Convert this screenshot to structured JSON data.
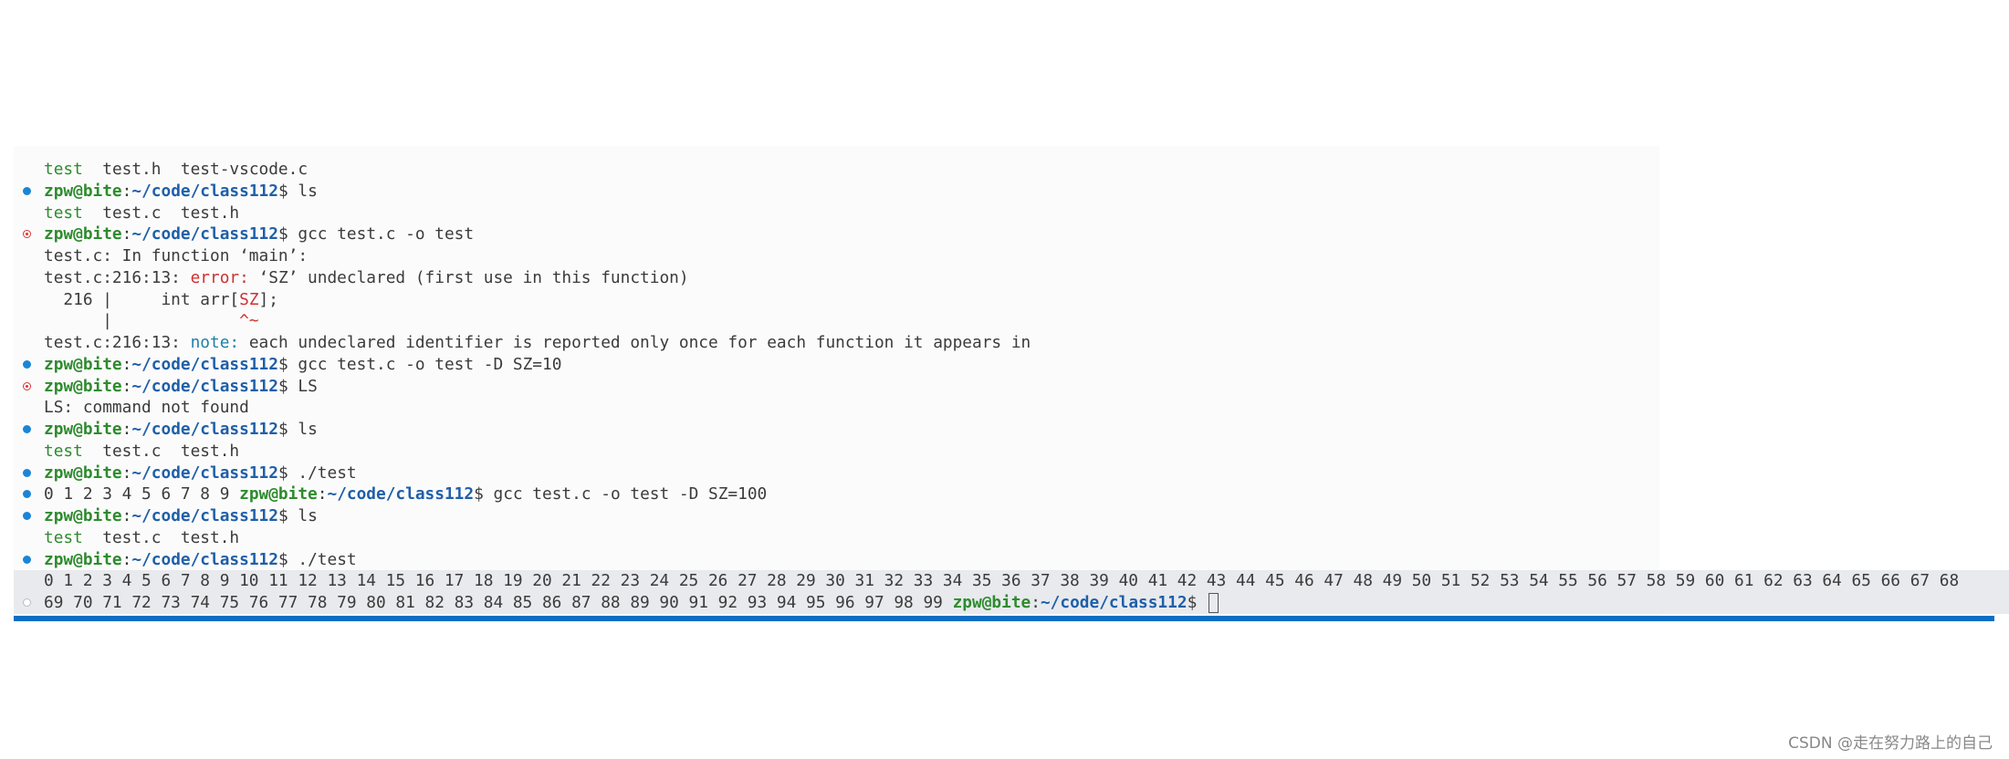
{
  "colors": {
    "prompt_user": "#2e8b2e",
    "prompt_path": "#1f5fa8",
    "error": "#cd3131",
    "note": "#1f7fa8",
    "status_bar": "#0a6fc2"
  },
  "terminal": {
    "lines": [
      {
        "marker": "",
        "segments": [
          {
            "t": "test",
            "c": "file"
          },
          {
            "t": "  test.h  test-vscode.c",
            "c": "text"
          }
        ]
      },
      {
        "marker": "ok",
        "segments": [
          {
            "t": "zpw@bite",
            "c": "user"
          },
          {
            "t": ":",
            "c": "sep"
          },
          {
            "t": "~/code/class112",
            "c": "path"
          },
          {
            "t": "$ ls",
            "c": "text"
          }
        ]
      },
      {
        "marker": "",
        "segments": [
          {
            "t": "test",
            "c": "file"
          },
          {
            "t": "  test.c  test.h",
            "c": "text"
          }
        ]
      },
      {
        "marker": "err",
        "segments": [
          {
            "t": "zpw@bite",
            "c": "user"
          },
          {
            "t": ":",
            "c": "sep"
          },
          {
            "t": "~/code/class112",
            "c": "path"
          },
          {
            "t": "$ gcc test.c -o test",
            "c": "text"
          }
        ]
      },
      {
        "marker": "",
        "segments": [
          {
            "t": "test.c: In function ‘main’:",
            "c": "text"
          }
        ]
      },
      {
        "marker": "",
        "segments": [
          {
            "t": "test.c:216:13: ",
            "c": "text"
          },
          {
            "t": "error:",
            "c": "err"
          },
          {
            "t": " ‘SZ’ undeclared (first use in this function)",
            "c": "text"
          }
        ]
      },
      {
        "marker": "",
        "segments": [
          {
            "t": "  216 |     int arr[",
            "c": "text"
          },
          {
            "t": "SZ",
            "c": "err"
          },
          {
            "t": "];",
            "c": "text"
          }
        ]
      },
      {
        "marker": "",
        "segments": [
          {
            "t": "      |             ",
            "c": "text"
          },
          {
            "t": "^~",
            "c": "err"
          }
        ]
      },
      {
        "marker": "",
        "segments": [
          {
            "t": "test.c:216:13: ",
            "c": "text"
          },
          {
            "t": "note:",
            "c": "note"
          },
          {
            "t": " each undeclared identifier is reported only once for each function it appears in",
            "c": "text"
          }
        ]
      },
      {
        "marker": "ok",
        "segments": [
          {
            "t": "zpw@bite",
            "c": "user"
          },
          {
            "t": ":",
            "c": "sep"
          },
          {
            "t": "~/code/class112",
            "c": "path"
          },
          {
            "t": "$ gcc test.c -o test -D SZ=10",
            "c": "text"
          }
        ]
      },
      {
        "marker": "err",
        "segments": [
          {
            "t": "zpw@bite",
            "c": "user"
          },
          {
            "t": ":",
            "c": "sep"
          },
          {
            "t": "~/code/class112",
            "c": "path"
          },
          {
            "t": "$ LS",
            "c": "text"
          }
        ]
      },
      {
        "marker": "",
        "segments": [
          {
            "t": "LS: command not found",
            "c": "text"
          }
        ]
      },
      {
        "marker": "ok",
        "segments": [
          {
            "t": "zpw@bite",
            "c": "user"
          },
          {
            "t": ":",
            "c": "sep"
          },
          {
            "t": "~/code/class112",
            "c": "path"
          },
          {
            "t": "$ ls",
            "c": "text"
          }
        ]
      },
      {
        "marker": "",
        "segments": [
          {
            "t": "test",
            "c": "file"
          },
          {
            "t": "  test.c  test.h",
            "c": "text"
          }
        ]
      },
      {
        "marker": "ok",
        "segments": [
          {
            "t": "zpw@bite",
            "c": "user"
          },
          {
            "t": ":",
            "c": "sep"
          },
          {
            "t": "~/code/class112",
            "c": "path"
          },
          {
            "t": "$ ./test",
            "c": "text"
          }
        ]
      },
      {
        "marker": "ok",
        "segments": [
          {
            "t": "0 1 2 3 4 5 6 7 8 9 ",
            "c": "text"
          },
          {
            "t": "zpw@bite",
            "c": "user"
          },
          {
            "t": ":",
            "c": "sep"
          },
          {
            "t": "~/code/class112",
            "c": "path"
          },
          {
            "t": "$ gcc test.c -o test -D SZ=100",
            "c": "text"
          }
        ]
      },
      {
        "marker": "ok",
        "segments": [
          {
            "t": "zpw@bite",
            "c": "user"
          },
          {
            "t": ":",
            "c": "sep"
          },
          {
            "t": "~/code/class112",
            "c": "path"
          },
          {
            "t": "$ ls",
            "c": "text"
          }
        ]
      },
      {
        "marker": "",
        "segments": [
          {
            "t": "test",
            "c": "file"
          },
          {
            "t": "  test.c  test.h",
            "c": "text"
          }
        ]
      },
      {
        "marker": "ok",
        "segments": [
          {
            "t": "zpw@bite",
            "c": "user"
          },
          {
            "t": ":",
            "c": "sep"
          },
          {
            "t": "~/code/class112",
            "c": "path"
          },
          {
            "t": "$ ./test",
            "c": "text"
          }
        ]
      },
      {
        "marker": "",
        "highlight": true,
        "segments": [
          {
            "t": "0 1 2 3 4 5 6 7 8 9 10 11 12 13 14 15 16 17 18 19 20 21 22 23 24 25 26 27 28 29 30 31 32 33 34 35 36 37 38 39 40 41 42 43 44 45 46 47 48 49 50 51 52 53 54 55 56 57 58 59 60 61 62 63 64 65 66 67 68",
            "c": "text"
          }
        ]
      },
      {
        "marker": "none",
        "highlight": true,
        "cursor": true,
        "segments": [
          {
            "t": "69 70 71 72 73 74 75 76 77 78 79 80 81 82 83 84 85 86 87 88 89 90 91 92 93 94 95 96 97 98 99 ",
            "c": "text"
          },
          {
            "t": "zpw@bite",
            "c": "user"
          },
          {
            "t": ":",
            "c": "sep"
          },
          {
            "t": "~/code/class112",
            "c": "path"
          },
          {
            "t": "$ ",
            "c": "text"
          }
        ]
      }
    ]
  },
  "watermark": "CSDN @走在努力路上的自己"
}
